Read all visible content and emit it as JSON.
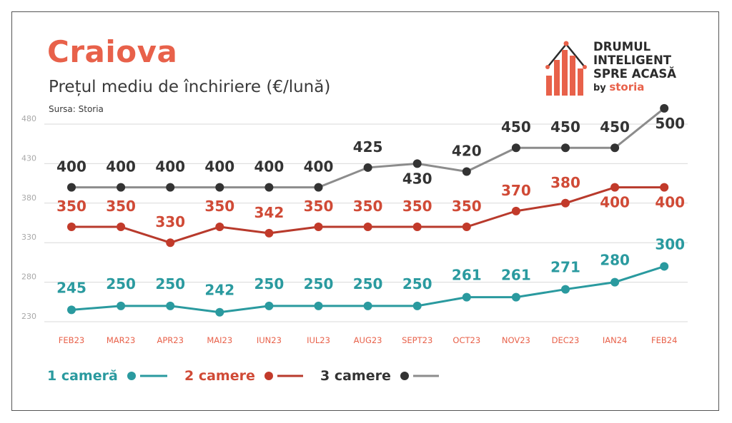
{
  "header": {
    "title": "Craiova",
    "subtitle": "Prețul mediu de închiriere (€/lună)",
    "source": "Sursa: Storia"
  },
  "brand": {
    "line1": "DRUMUL",
    "line2": "INTELIGENT",
    "line3": "SPRE ACASĂ",
    "by": "by",
    "storia": "storia"
  },
  "colors": {
    "accent": "#e8614a",
    "teal": "#2a9a9f",
    "red": "#c23a2a",
    "dark": "#333333",
    "gray_line": "#8c8c8c"
  },
  "chart_data": {
    "type": "line",
    "categories": [
      "FEB23",
      "MAR23",
      "APR23",
      "MAI23",
      "IUN23",
      "IUL23",
      "AUG23",
      "SEPT23",
      "OCT23",
      "NOV23",
      "DEC23",
      "IAN24",
      "FEB24"
    ],
    "yticks": [
      480,
      430,
      380,
      330,
      280,
      230
    ],
    "ylim": [
      230,
      480
    ],
    "grid": true,
    "legend_position": "bottom-left",
    "series": [
      {
        "name": "1 cameră",
        "color": "#2a9a9f",
        "line_color": "#2a9a9f",
        "dot_color": "#2a9a9f",
        "label_color": "#2a9a9f",
        "values": [
          245,
          250,
          250,
          242,
          250,
          250,
          250,
          250,
          261,
          261,
          271,
          280,
          300
        ]
      },
      {
        "name": "2 camere",
        "color": "#c23a2a",
        "line_color": "#b83a2c",
        "dot_color": "#c23a2a",
        "label_color": "#d04a36",
        "values": [
          350,
          350,
          330,
          350,
          342,
          350,
          350,
          350,
          350,
          370,
          380,
          400,
          400
        ]
      },
      {
        "name": "3 camere",
        "color": "#333333",
        "line_color": "#8c8c8c",
        "dot_color": "#333333",
        "label_color": "#333333",
        "values": [
          400,
          400,
          400,
          400,
          400,
          400,
          425,
          430,
          420,
          450,
          450,
          450,
          500
        ]
      }
    ]
  }
}
